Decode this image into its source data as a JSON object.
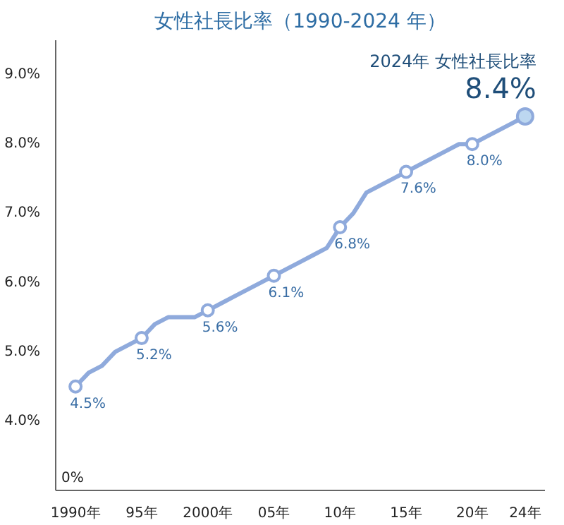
{
  "chart_data": {
    "type": "line",
    "title": "女性社長比率（1990-2024 年）",
    "categories": [
      "1990年",
      null,
      null,
      null,
      null,
      "95年",
      null,
      null,
      null,
      null,
      "2000年",
      null,
      null,
      null,
      null,
      "05年",
      null,
      null,
      null,
      null,
      "10年",
      null,
      null,
      null,
      null,
      "15年",
      null,
      null,
      null,
      null,
      "20年",
      null,
      null,
      null,
      "24年"
    ],
    "series": [
      {
        "color": "#8faadc",
        "values": [
          4.5,
          4.7,
          4.8,
          5.0,
          5.1,
          5.2,
          5.4,
          5.5,
          5.5,
          5.5,
          5.6,
          5.7,
          5.8,
          5.9,
          6.0,
          6.1,
          6.2,
          6.3,
          6.4,
          6.5,
          6.8,
          7.0,
          7.3,
          7.4,
          7.5,
          7.6,
          7.7,
          7.8,
          7.9,
          8.0,
          8.0,
          8.1,
          8.2,
          8.3,
          8.4
        ],
        "value_labels": [
          "4.5%",
          null,
          null,
          null,
          null,
          "5.2%",
          null,
          null,
          null,
          null,
          "5.6%",
          null,
          null,
          null,
          null,
          "6.1%",
          null,
          null,
          null,
          null,
          "6.8%",
          null,
          null,
          null,
          null,
          "7.6%",
          null,
          null,
          null,
          null,
          "8.0%",
          null,
          null,
          null,
          "8.4%"
        ]
      }
    ],
    "annotations": [
      {
        "text": "2024年 女性社長比率",
        "x": "24年",
        "y": 8.4
      },
      "0%"
    ],
    "ylim": [
      3,
      9.5
    ],
    "yticks": [
      {
        "value": 4,
        "label": "4.0%"
      },
      {
        "value": 5,
        "label": "5.0%"
      },
      {
        "value": 6,
        "label": "6.0%"
      },
      {
        "value": 7,
        "label": "7.0%"
      },
      {
        "value": 8,
        "label": "8.0%"
      },
      {
        "value": 9,
        "label": "9.0%"
      }
    ],
    "grid": false,
    "line_style": "solid"
  }
}
